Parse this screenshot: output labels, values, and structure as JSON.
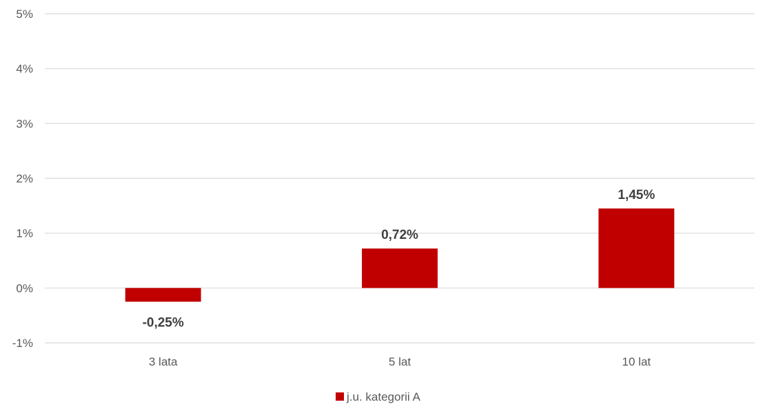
{
  "chart_data": {
    "type": "bar",
    "categories": [
      "3 lata",
      "5 lat",
      "10 lat"
    ],
    "series": [
      {
        "name": "j.u. kategorii A",
        "values": [
          -0.25,
          0.72,
          1.45
        ],
        "value_labels": [
          "-0,25%",
          "0,72%",
          "1,45%"
        ],
        "color": "#c00000"
      }
    ],
    "title": "",
    "xlabel": "",
    "ylabel": "",
    "ylim": [
      -1,
      5
    ],
    "yticks": [
      -1,
      0,
      1,
      2,
      3,
      4,
      5
    ],
    "ytick_labels": [
      "-1%",
      "0%",
      "1%",
      "2%",
      "3%",
      "4%",
      "5%"
    ],
    "grid": true,
    "legend_position": "bottom-center"
  }
}
